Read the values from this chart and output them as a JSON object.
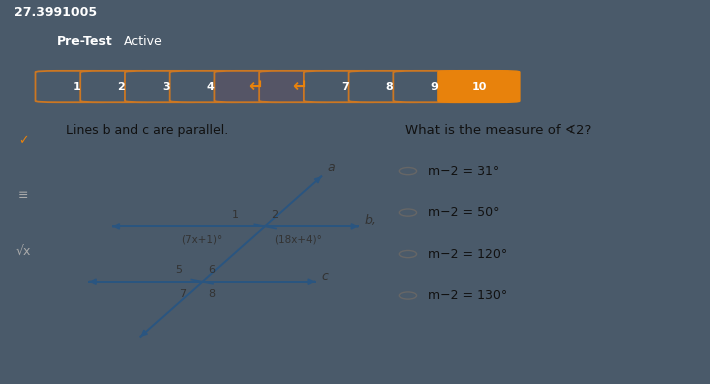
{
  "title_pretest": "Pre-Test",
  "title_active": "Active",
  "top_bar_color": "#3a3fd4",
  "top_bar_text": "27.3991005",
  "header_bg": "#4a5a6a",
  "header_text_color": "#ffffff",
  "nav_active": "10",
  "nav_active_color": "#e8820c",
  "nav_border_color": "#cc7722",
  "body_bg": "#c8c8c8",
  "question_text": "Lines b and c are parallel.",
  "question_right": "What is the measure of ∢2?",
  "choices": [
    "m−2 = 31°",
    "m−2 = 50°",
    "m−2 = 120°",
    "m−2 = 130°"
  ],
  "diagram_line_color": "#2a5580",
  "diagram_label_color": "#333333"
}
